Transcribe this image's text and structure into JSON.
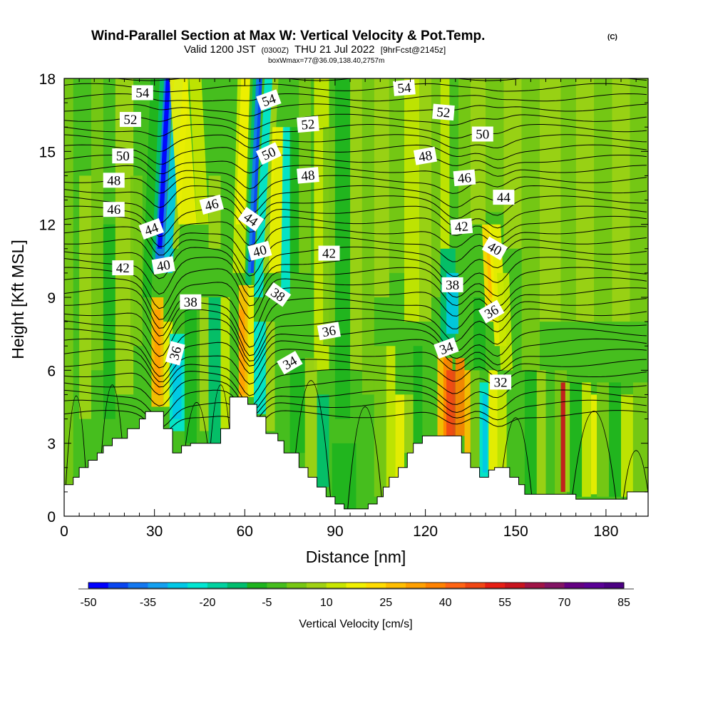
{
  "chart_data": {
    "type": "heatmap",
    "title": "Wind-Parallel Section at Max W: Vertical Velocity & Pot.Temp.",
    "title_mark": "(C)",
    "subtitle_parts": [
      "Valid 1200 JST",
      "(0300Z)",
      "THU 21 Jul 2022",
      "[9hrFcst@2145z]"
    ],
    "subtitle2": "boxWmax=77@36.09,138.40,2757m",
    "xlabel": "Distance [nm]",
    "ylabel": "Height [Kft MSL]",
    "xlim": [
      0,
      194
    ],
    "ylim": [
      0,
      18
    ],
    "x_ticks": [
      "0",
      "30",
      "60",
      "90",
      "120",
      "150",
      "180"
    ],
    "x_tick_values": [
      0,
      30,
      60,
      90,
      120,
      150,
      180
    ],
    "y_ticks": [
      "0",
      "3",
      "6",
      "9",
      "12",
      "15",
      "18"
    ],
    "y_tick_values": [
      0,
      3,
      6,
      9,
      12,
      15,
      18
    ],
    "colorbar": {
      "label": "Vertical Velocity [cm/s]",
      "min": -50,
      "max": 85,
      "step": 5,
      "tick_labels": [
        "-50",
        "-35",
        "-20",
        "-5",
        "10",
        "25",
        "40",
        "55",
        "70",
        "85"
      ],
      "tick_values": [
        -50,
        -35,
        -20,
        -5,
        10,
        25,
        40,
        55,
        70,
        85
      ],
      "colors": [
        "#0000ff",
        "#0a46f0",
        "#1478f0",
        "#14a0f0",
        "#00c8e6",
        "#00e6d2",
        "#00d2a0",
        "#00be6e",
        "#1eb41e",
        "#46be1e",
        "#78c814",
        "#a0d214",
        "#c8e600",
        "#f0f000",
        "#ffdc00",
        "#ffbe00",
        "#ffa000",
        "#ff8200",
        "#ff6414",
        "#f04614",
        "#e61e14",
        "#c8141e",
        "#a01446",
        "#821464",
        "#640082",
        "#5a0096",
        "#4b0082"
      ]
    },
    "theta_contour_labels": [
      {
        "value": "54",
        "x": 26,
        "y": 17.4,
        "a": 0
      },
      {
        "value": "52",
        "x": 22,
        "y": 16.3,
        "a": 0
      },
      {
        "value": "50",
        "x": 19.5,
        "y": 14.8,
        "a": 0
      },
      {
        "value": "48",
        "x": 16.5,
        "y": 13.8,
        "a": 0
      },
      {
        "value": "46",
        "x": 16.5,
        "y": 12.6,
        "a": 0
      },
      {
        "value": "44",
        "x": 29,
        "y": 11.8,
        "a": -20
      },
      {
        "value": "42",
        "x": 19.5,
        "y": 10.2,
        "a": 0
      },
      {
        "value": "40",
        "x": 33,
        "y": 10.3,
        "a": -10
      },
      {
        "value": "38",
        "x": 42,
        "y": 8.8,
        "a": 0
      },
      {
        "value": "36",
        "x": 37,
        "y": 6.7,
        "a": -75
      },
      {
        "value": "46",
        "x": 49,
        "y": 12.8,
        "a": -15
      },
      {
        "value": "44",
        "x": 62,
        "y": 12.2,
        "a": 35
      },
      {
        "value": "40",
        "x": 65,
        "y": 10.9,
        "a": -15
      },
      {
        "value": "38",
        "x": 71,
        "y": 9.1,
        "a": 35
      },
      {
        "value": "54",
        "x": 68,
        "y": 17.1,
        "a": -20
      },
      {
        "value": "50",
        "x": 68,
        "y": 14.9,
        "a": -25
      },
      {
        "value": "52",
        "x": 81,
        "y": 16.1,
        "a": -5
      },
      {
        "value": "48",
        "x": 81,
        "y": 14.0,
        "a": -5
      },
      {
        "value": "42",
        "x": 88,
        "y": 10.8,
        "a": 0
      },
      {
        "value": "36",
        "x": 88,
        "y": 7.6,
        "a": -10
      },
      {
        "value": "34",
        "x": 75,
        "y": 6.3,
        "a": -30
      },
      {
        "value": "54",
        "x": 113,
        "y": 17.6,
        "a": -5
      },
      {
        "value": "52",
        "x": 126,
        "y": 16.6,
        "a": 5
      },
      {
        "value": "48",
        "x": 120,
        "y": 14.8,
        "a": -10
      },
      {
        "value": "50",
        "x": 139,
        "y": 15.7,
        "a": 0
      },
      {
        "value": "46",
        "x": 133,
        "y": 13.9,
        "a": -5
      },
      {
        "value": "44",
        "x": 146,
        "y": 13.1,
        "a": 0
      },
      {
        "value": "42",
        "x": 132,
        "y": 11.9,
        "a": -5
      },
      {
        "value": "40",
        "x": 143,
        "y": 11.0,
        "a": 30
      },
      {
        "value": "38",
        "x": 129,
        "y": 9.5,
        "a": 0
      },
      {
        "value": "36",
        "x": 142,
        "y": 8.4,
        "a": -30
      },
      {
        "value": "34",
        "x": 127,
        "y": 6.9,
        "a": -20
      },
      {
        "value": "32",
        "x": 145,
        "y": 5.5,
        "a": 0
      }
    ]
  }
}
